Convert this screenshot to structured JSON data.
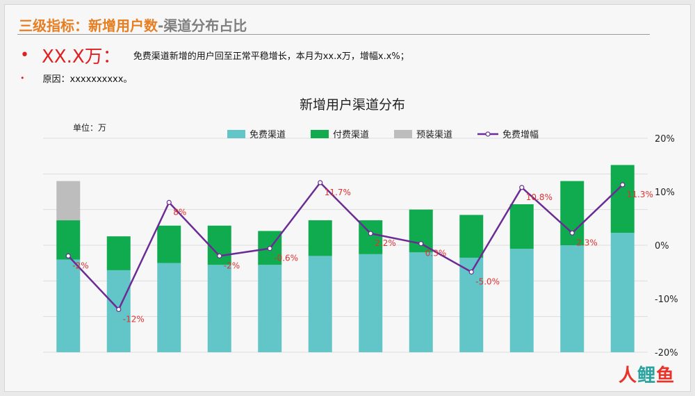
{
  "header": {
    "title_main": "三级指标：新增用户数",
    "title_sub": "-渠道分布占比"
  },
  "summary": {
    "big_number": "XX.X万：",
    "text": "免费渠道新增的用户回至正常平稳增长，本月为xx.x万，增幅x.x%；",
    "reason": "原因：xxxxxxxxxx。"
  },
  "watermark": {
    "part1": "人",
    "part2": "鲤",
    "part3": "鱼"
  },
  "colors": {
    "free": "#62c5c8",
    "paid": "#10ab4e",
    "preinstall": "#bdbdbd",
    "growth": "#6a2c94",
    "labels": "#e03030"
  },
  "chart_data": {
    "type": "bar",
    "title": "新增用户渠道分布",
    "unit_label": "单位：万",
    "stacked": true,
    "categories": [
      "",
      "",
      "",
      "",
      "",
      "",
      "",
      "",
      "",
      "",
      "",
      ""
    ],
    "series": [
      {
        "name": "免费渠道",
        "kind": "bar",
        "values": [
          52,
          46,
          50,
          49,
          49,
          54,
          55,
          56,
          53,
          58,
          60,
          67
        ]
      },
      {
        "name": "付费渠道",
        "kind": "bar",
        "values": [
          22,
          19,
          21,
          22,
          19,
          20,
          19,
          24,
          24,
          25,
          36,
          38
        ]
      },
      {
        "name": "预装渠道",
        "kind": "bar",
        "values": [
          22,
          0,
          0,
          0,
          0,
          0,
          0,
          0,
          0,
          0,
          0,
          0
        ]
      },
      {
        "name": "免费增幅",
        "kind": "line",
        "axis": "right",
        "values": [
          -2,
          -12,
          8,
          -2,
          -0.6,
          11.7,
          2.2,
          0.3,
          -5.0,
          10.8,
          2.3,
          11.3
        ]
      }
    ],
    "data_labels": [
      "-2%",
      "-12%",
      "8%",
      "-2%",
      "-0.6%",
      "11.7%",
      "2.2%",
      "0.3%",
      "-5.0%",
      "10.8%",
      "2.3%",
      "11.3%"
    ],
    "y_right_ticks": [
      "20%",
      "10%",
      "0%",
      "-10%",
      "-20%"
    ],
    "ylim": [
      0,
      120
    ],
    "y2lim": [
      -20,
      20
    ],
    "grid": true,
    "legend": "top"
  }
}
